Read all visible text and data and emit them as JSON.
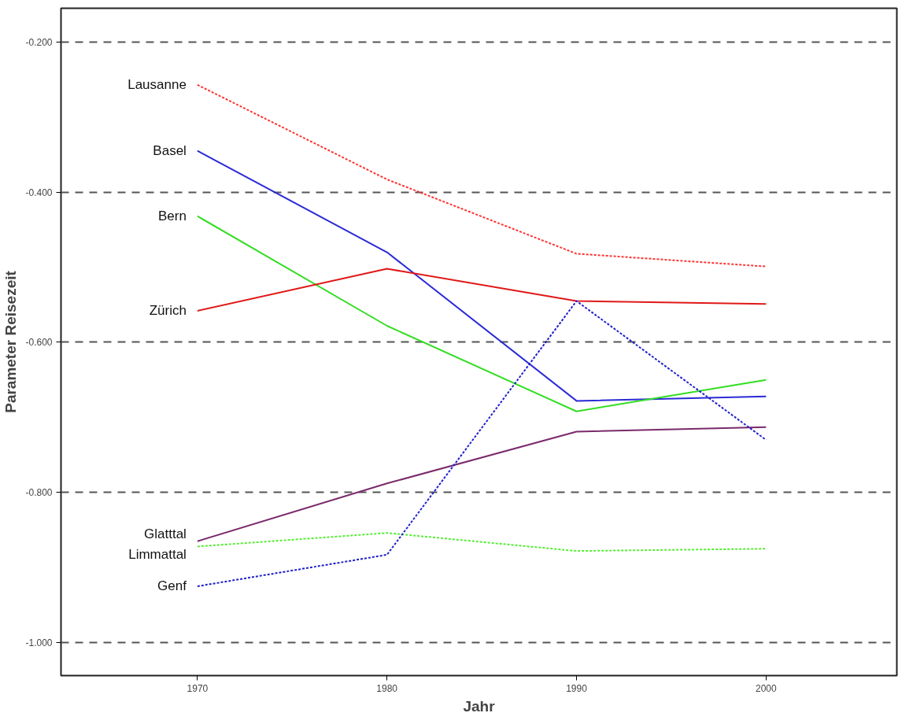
{
  "chart_data": {
    "type": "line",
    "xlabel": "Jahr",
    "ylabel": "Parameter Reisezeit",
    "x": [
      1970,
      1980,
      1990,
      2000
    ],
    "xlim": [
      1962.8,
      2006.9
    ],
    "xticks": [
      1970,
      1980,
      1990,
      2000
    ],
    "ylim": [
      -1.044,
      -0.155
    ],
    "yticks": [
      {
        "value": -1.0,
        "label": "-1.000"
      },
      {
        "value": -0.8,
        "label": "-0.800"
      },
      {
        "value": -0.6,
        "label": "-0.600"
      },
      {
        "value": -0.4,
        "label": "-0.400"
      },
      {
        "value": -0.2,
        "label": "-0.200"
      }
    ],
    "grid": "y",
    "legend": false,
    "marker": "none",
    "series": [
      {
        "name": "Lausanne",
        "color": "#ff3333",
        "line_style": "dotted",
        "values": [
          -0.257,
          -0.383,
          -0.482,
          -0.499
        ]
      },
      {
        "name": "Basel",
        "color": "#2a2ad6",
        "line_style": "solid",
        "values": [
          -0.345,
          -0.48,
          -0.678,
          -0.672
        ]
      },
      {
        "name": "Bern",
        "color": "#33dd22",
        "line_style": "solid",
        "values": [
          -0.432,
          -0.578,
          -0.692,
          -0.65
        ]
      },
      {
        "name": "Zürich",
        "color": "#e01818",
        "line_style": "solid",
        "values": [
          -0.558,
          -0.502,
          -0.545,
          -0.549
        ]
      },
      {
        "name": "Glatttal",
        "color": "#7a2a6a",
        "line_style": "solid",
        "values": [
          -0.865,
          -0.788,
          -0.719,
          -0.713
        ]
      },
      {
        "name": "Limmattal",
        "color": "#55ee33",
        "line_style": "dotted",
        "values": [
          -0.872,
          -0.854,
          -0.878,
          -0.875
        ]
      },
      {
        "name": "Genf",
        "color": "#2020cc",
        "line_style": "dotted",
        "values": [
          -0.925,
          -0.883,
          -0.545,
          -0.73
        ]
      }
    ]
  }
}
